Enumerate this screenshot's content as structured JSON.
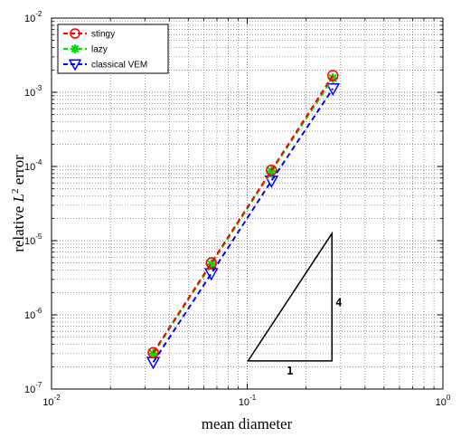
{
  "chart_data": {
    "type": "line",
    "title": "",
    "xlabel": "mean diameter",
    "ylabel": {
      "prefix": "relative ",
      "var": "L",
      "sup": "2",
      "suffix": " error"
    },
    "xscale": "log",
    "yscale": "log",
    "xlim": [
      0.01,
      1
    ],
    "ylim": [
      1e-07,
      0.01
    ],
    "grid": true,
    "legend_position": "top-left",
    "x_ticks": [
      {
        "base": "10",
        "exp": "-2"
      },
      {
        "base": "10",
        "exp": "-1"
      },
      {
        "base": "10",
        "exp": "0"
      }
    ],
    "y_ticks": [
      {
        "base": "10",
        "exp": "-7"
      },
      {
        "base": "10",
        "exp": "-6"
      },
      {
        "base": "10",
        "exp": "-5"
      },
      {
        "base": "10",
        "exp": "-4"
      },
      {
        "base": "10",
        "exp": "-3"
      },
      {
        "base": "10",
        "exp": "-2"
      }
    ],
    "series": [
      {
        "name": "stingy",
        "color": "#ff0000",
        "marker": "circle",
        "x": [
          0.0331,
          0.0655,
          0.133,
          0.274
        ],
        "y": [
          3.1e-07,
          5e-06,
          8.9e-05,
          0.00168
        ]
      },
      {
        "name": "lazy",
        "color": "#00dd00",
        "marker": "star",
        "x": [
          0.0331,
          0.0655,
          0.133,
          0.274
        ],
        "y": [
          3e-07,
          4.8e-06,
          8.6e-05,
          0.00155
        ]
      },
      {
        "name": "classical VEM",
        "color": "#0000ff",
        "marker": "triangle-down",
        "x": [
          0.0331,
          0.0655,
          0.133,
          0.274
        ],
        "y": [
          2.3e-07,
          3.6e-06,
          6.4e-05,
          0.00112
        ]
      }
    ],
    "slope_triangle": {
      "x": [
        0.101,
        0.271
      ],
      "y": [
        2.4e-07,
        1.25e-05
      ],
      "run_label": "1",
      "rise_label": "4"
    }
  }
}
